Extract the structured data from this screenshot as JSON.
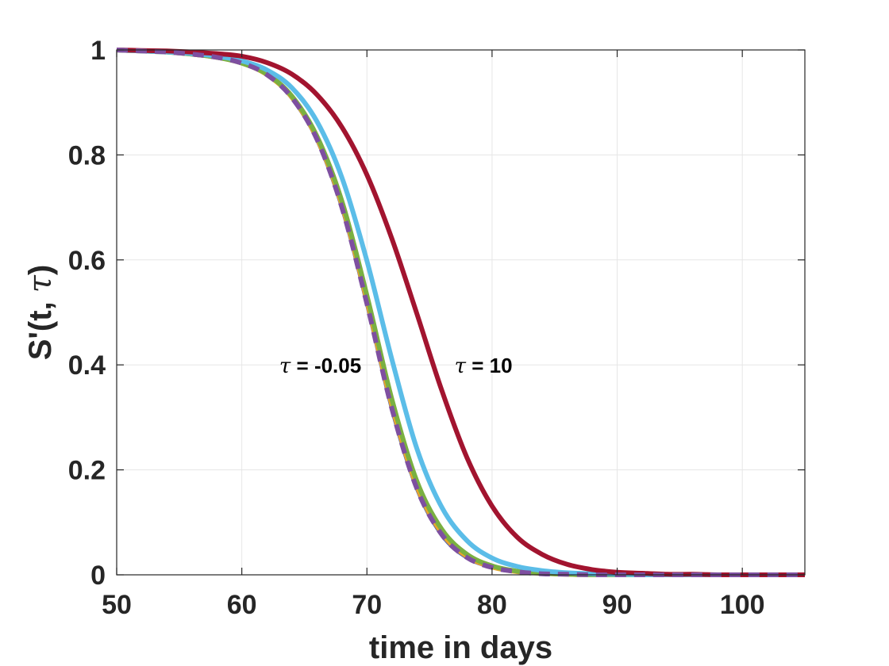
{
  "chart_data": {
    "type": "line",
    "title": "",
    "xlabel": "time in days",
    "ylabel_main": "S'(t, ",
    "ylabel_greek": "τ",
    "ylabel_close": ")",
    "xlim": [
      50,
      105
    ],
    "ylim": [
      0,
      1
    ],
    "grid": true,
    "legend": "none",
    "x_ticks": [
      50,
      60,
      70,
      80,
      90,
      100
    ],
    "y_ticks": [
      0,
      0.2,
      0.4,
      0.6,
      0.8,
      1
    ],
    "x_tick_labels": [
      "50",
      "60",
      "70",
      "80",
      "90",
      "100"
    ],
    "y_tick_labels": [
      "0",
      "0.2",
      "0.4",
      "0.6",
      "0.8",
      "1"
    ],
    "annotations": [
      {
        "greek": "τ",
        "text": " = -0.05",
        "x": 63,
        "y": 0.4
      },
      {
        "greek": "τ",
        "text": " = 10",
        "x": 77,
        "y": 0.4
      }
    ],
    "x": [
      50,
      52,
      54,
      56,
      58,
      60,
      62,
      64,
      66,
      68,
      70,
      72,
      74,
      76,
      78,
      80,
      82,
      84,
      86,
      88,
      90,
      92,
      94,
      96,
      98,
      100,
      102,
      105
    ],
    "series": [
      {
        "color": "#4a5fb0",
        "width": 3,
        "dash": "",
        "values": [
          1,
          0.998,
          0.996,
          0.992,
          0.986,
          0.974,
          0.951,
          0.906,
          0.826,
          0.695,
          0.51,
          0.31,
          0.16,
          0.073,
          0.031,
          0.013,
          0.005,
          0.002,
          0.001,
          0,
          0,
          0,
          0,
          0,
          0,
          0,
          0,
          0
        ]
      },
      {
        "color": "#e8a52c",
        "width": 6,
        "dash": "",
        "values": [
          1,
          0.998,
          0.996,
          0.992,
          0.986,
          0.975,
          0.953,
          0.91,
          0.832,
          0.705,
          0.522,
          0.322,
          0.168,
          0.079,
          0.035,
          0.015,
          0.006,
          0.003,
          0.001,
          0,
          0,
          0,
          0,
          0,
          0,
          0,
          0,
          0
        ]
      },
      {
        "color": "#7ab041",
        "width": 6,
        "dash": "",
        "values": [
          1,
          0.998,
          0.996,
          0.992,
          0.986,
          0.975,
          0.954,
          0.912,
          0.836,
          0.712,
          0.532,
          0.334,
          0.178,
          0.086,
          0.039,
          0.017,
          0.007,
          0.003,
          0.001,
          0,
          0,
          0,
          0,
          0,
          0,
          0,
          0,
          0
        ]
      },
      {
        "color": "#5bbde8",
        "width": 6,
        "dash": "",
        "values": [
          1,
          0.998,
          0.996,
          0.993,
          0.988,
          0.979,
          0.962,
          0.928,
          0.864,
          0.757,
          0.598,
          0.41,
          0.24,
          0.128,
          0.065,
          0.032,
          0.016,
          0.008,
          0.004,
          0.002,
          0.001,
          0,
          0,
          0,
          0,
          0,
          0,
          0
        ]
      },
      {
        "color": "#a2142f",
        "width": 6,
        "dash": "",
        "values": [
          1,
          0.999,
          0.998,
          0.996,
          0.993,
          0.988,
          0.976,
          0.954,
          0.915,
          0.853,
          0.762,
          0.64,
          0.497,
          0.35,
          0.223,
          0.131,
          0.072,
          0.039,
          0.02,
          0.01,
          0.005,
          0.003,
          0.001,
          0.001,
          0,
          0,
          0,
          0
        ]
      },
      {
        "color": "#7e4fa0",
        "width": 6,
        "dash": "14 10",
        "values": [
          1,
          0.998,
          0.996,
          0.992,
          0.986,
          0.975,
          0.953,
          0.909,
          0.83,
          0.7,
          0.516,
          0.316,
          0.164,
          0.076,
          0.033,
          0.014,
          0.006,
          0.002,
          0.001,
          0,
          0,
          0,
          0,
          0,
          0,
          0,
          0,
          0
        ]
      }
    ]
  }
}
